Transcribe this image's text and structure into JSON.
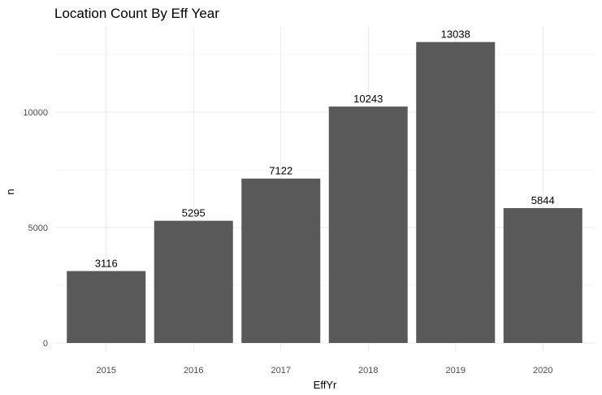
{
  "chart_data": {
    "type": "bar",
    "title": "Location Count By Eff Year",
    "xlabel": "EffYr",
    "ylabel": "n",
    "categories": [
      "2015",
      "2016",
      "2017",
      "2018",
      "2019",
      "2020"
    ],
    "values": [
      3116,
      5295,
      7122,
      10243,
      13038,
      5844
    ],
    "data_labels": [
      "3116",
      "5295",
      "7122",
      "10243",
      "13038",
      "5844"
    ],
    "ylim": [
      0,
      13700
    ],
    "y_ticks": [
      0,
      5000,
      10000
    ],
    "y_tick_labels": [
      "0",
      "5000",
      "10000"
    ],
    "y_minor_ticks": [
      2500,
      7500,
      12500
    ],
    "grid": true,
    "bar_color": "#595959",
    "grid_color": "#ebebeb"
  }
}
